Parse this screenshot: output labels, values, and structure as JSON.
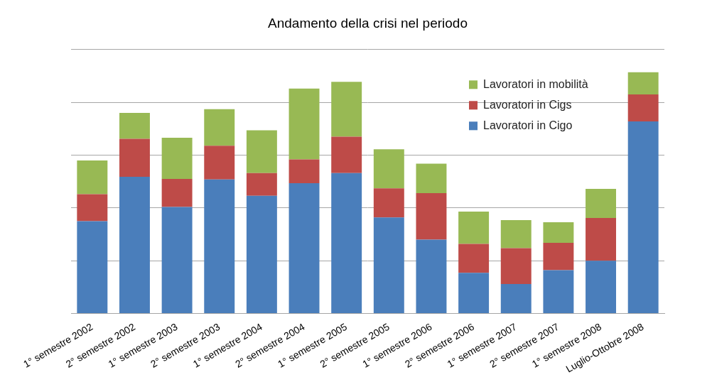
{
  "chart_data": {
    "type": "bar",
    "title": "Andamento della crisi nel periodo",
    "categories": [
      "1° semestre 2002",
      "2° semestre 2002",
      "1° semestre 2003",
      "2° semestre 2003",
      "1° semestre 2004",
      "2° semestre 2004",
      "1° semestre 2005",
      "2° semestre 2005",
      "1° semestre 2006",
      "2° semestre 2006",
      "1° semestre 2007",
      "2° semestre 2007",
      "1° semestre 2008",
      "Luglio-Ottobre 2008"
    ],
    "series": [
      {
        "name": "Lavoratori in Cigo",
        "color": "#4a7ebb",
        "values": [
          1.75,
          2.59,
          2.02,
          2.54,
          2.23,
          2.47,
          2.66,
          1.82,
          1.4,
          0.77,
          0.56,
          0.82,
          1.0,
          3.64
        ]
      },
      {
        "name": "Lavoratori in Cigs",
        "color": "#be4b48",
        "values": [
          0.51,
          0.72,
          0.53,
          0.64,
          0.43,
          0.45,
          0.69,
          0.55,
          0.88,
          0.55,
          0.68,
          0.52,
          0.81,
          0.51
        ]
      },
      {
        "name": "Lavoratori in mobilità",
        "color": "#98b954",
        "values": [
          0.64,
          0.49,
          0.78,
          0.69,
          0.81,
          1.34,
          1.04,
          0.74,
          0.56,
          0.61,
          0.53,
          0.39,
          0.55,
          0.42
        ]
      }
    ],
    "ylim": [
      0,
      5
    ],
    "yticks": [
      0,
      1,
      2,
      3,
      4,
      5
    ],
    "stacked": true,
    "grid": true,
    "legend": "upper right",
    "tick_labels": "x"
  }
}
